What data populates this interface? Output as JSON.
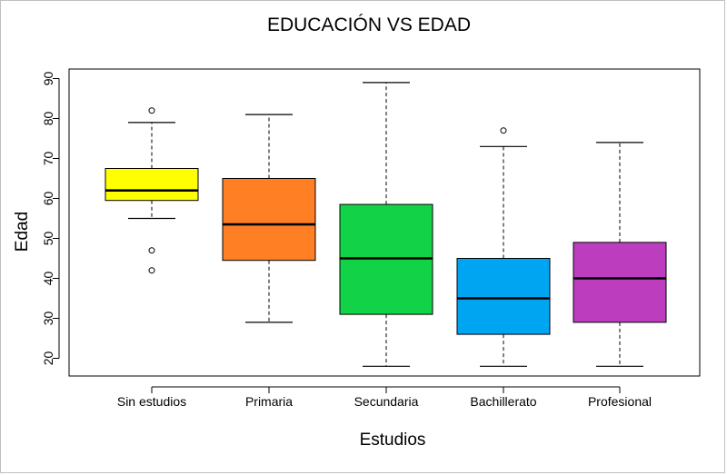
{
  "chart_data": {
    "type": "boxplot",
    "title": "EDUCACIÓN VS EDAD",
    "xlabel": "Estudios",
    "ylabel": "Edad",
    "ylim": [
      15,
      92
    ],
    "yticks": [
      "20",
      "30",
      "40",
      "50",
      "60",
      "70",
      "80",
      "90"
    ],
    "grid": false,
    "legend": "none",
    "categories": [
      "Sin estudios",
      "Primaria",
      "Secundaria",
      "Bachillerato",
      "Profesional"
    ],
    "boxes": [
      {
        "category": "Sin estudios",
        "whisker_low": 55,
        "q1": 59.5,
        "median": 62,
        "q3": 67.5,
        "whisker_high": 79,
        "outliers": [
          82,
          47,
          42
        ],
        "color": "#ffff00"
      },
      {
        "category": "Primaria",
        "whisker_low": 29,
        "q1": 44.5,
        "median": 53.5,
        "q3": 65,
        "whisker_high": 81,
        "outliers": [],
        "color": "#ff7f24"
      },
      {
        "category": "Secundaria",
        "whisker_low": 18,
        "q1": 31,
        "median": 45,
        "q3": 58.5,
        "whisker_high": 89,
        "outliers": [],
        "color": "#12d348"
      },
      {
        "category": "Bachillerato",
        "whisker_low": 18,
        "q1": 26,
        "median": 35,
        "q3": 45,
        "whisker_high": 73,
        "outliers": [
          77
        ],
        "color": "#00a5f2"
      },
      {
        "category": "Profesional",
        "whisker_low": 18,
        "q1": 29,
        "median": 40,
        "q3": 49,
        "whisker_high": 74,
        "outliers": [],
        "color": "#bc3ebf"
      }
    ]
  }
}
